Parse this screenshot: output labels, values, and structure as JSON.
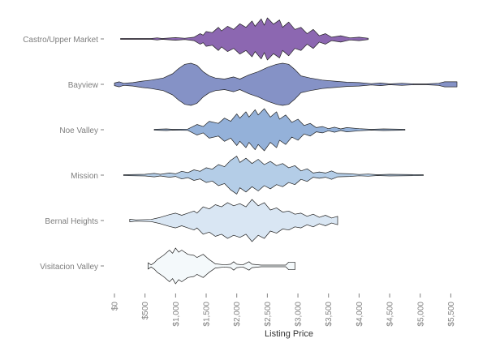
{
  "chart_data": {
    "type": "violin",
    "title": "",
    "xlabel": "Listing Price",
    "ylabel": "",
    "xlim": [
      0,
      5600
    ],
    "x_ticks": [
      0,
      500,
      1000,
      1500,
      2000,
      2500,
      3000,
      3500,
      4000,
      4500,
      5000,
      5500
    ],
    "x_tick_labels": [
      "$0",
      "$500",
      "$1,000",
      "$1,500",
      "$2,000",
      "$2,500",
      "$3,000",
      "$3,500",
      "$4,000",
      "$4,500",
      "$5,000",
      "$5,500"
    ],
    "categories": [
      "Castro/Upper Market",
      "Bayview",
      "Noe Valley",
      "Mission",
      "Bernal Heights",
      "Visitacion Valley"
    ],
    "colors": [
      "#8c67b1",
      "#8592c6",
      "#94b1d9",
      "#b4cde7",
      "#d9e6f3",
      "#f4f9fb"
    ],
    "series": [
      {
        "name": "Castro/Upper Market",
        "min": 100,
        "max": 4150,
        "density": [
          [
            100,
            0.02
          ],
          [
            600,
            0.02
          ],
          [
            700,
            0.05
          ],
          [
            780,
            0.02
          ],
          [
            1000,
            0.06
          ],
          [
            1150,
            0.03
          ],
          [
            1300,
            0.08
          ],
          [
            1400,
            0.25
          ],
          [
            1450,
            0.18
          ],
          [
            1500,
            0.35
          ],
          [
            1600,
            0.3
          ],
          [
            1700,
            0.55
          ],
          [
            1750,
            0.38
          ],
          [
            1850,
            0.6
          ],
          [
            1950,
            0.45
          ],
          [
            2050,
            0.72
          ],
          [
            2150,
            0.55
          ],
          [
            2250,
            0.85
          ],
          [
            2300,
            0.6
          ],
          [
            2400,
            0.95
          ],
          [
            2450,
            0.65
          ],
          [
            2500,
            1.0
          ],
          [
            2600,
            0.7
          ],
          [
            2700,
            0.9
          ],
          [
            2750,
            0.55
          ],
          [
            2850,
            0.8
          ],
          [
            2950,
            0.45
          ],
          [
            3050,
            0.55
          ],
          [
            3150,
            0.25
          ],
          [
            3250,
            0.45
          ],
          [
            3350,
            0.15
          ],
          [
            3450,
            0.25
          ],
          [
            3550,
            0.08
          ],
          [
            3700,
            0.15
          ],
          [
            3850,
            0.05
          ],
          [
            4000,
            0.08
          ],
          [
            4150,
            0.03
          ]
        ]
      },
      {
        "name": "Bayview",
        "min": 0,
        "max": 5600,
        "density": [
          [
            0,
            0.06
          ],
          [
            80,
            0.12
          ],
          [
            150,
            0.05
          ],
          [
            300,
            0.08
          ],
          [
            450,
            0.15
          ],
          [
            600,
            0.2
          ],
          [
            800,
            0.3
          ],
          [
            950,
            0.5
          ],
          [
            1050,
            0.75
          ],
          [
            1150,
            0.95
          ],
          [
            1250,
            1.0
          ],
          [
            1350,
            0.9
          ],
          [
            1450,
            0.6
          ],
          [
            1550,
            0.4
          ],
          [
            1650,
            0.3
          ],
          [
            1800,
            0.25
          ],
          [
            1950,
            0.35
          ],
          [
            2050,
            0.25
          ],
          [
            2200,
            0.45
          ],
          [
            2350,
            0.6
          ],
          [
            2500,
            0.8
          ],
          [
            2650,
            0.95
          ],
          [
            2750,
            1.0
          ],
          [
            2850,
            0.95
          ],
          [
            2950,
            0.7
          ],
          [
            3050,
            0.4
          ],
          [
            3200,
            0.3
          ],
          [
            3400,
            0.2
          ],
          [
            3600,
            0.15
          ],
          [
            3800,
            0.1
          ],
          [
            4000,
            0.08
          ],
          [
            4200,
            0.03
          ],
          [
            4350,
            0.06
          ],
          [
            4500,
            0.02
          ],
          [
            4700,
            0.05
          ],
          [
            4900,
            0.02
          ],
          [
            5100,
            0.02
          ],
          [
            5300,
            0.05
          ],
          [
            5400,
            0.12
          ],
          [
            5600,
            0.12
          ]
        ]
      },
      {
        "name": "Noe Valley",
        "min": 650,
        "max": 4750,
        "density": [
          [
            650,
            0.02
          ],
          [
            850,
            0.04
          ],
          [
            950,
            0.02
          ],
          [
            1200,
            0.03
          ],
          [
            1350,
            0.25
          ],
          [
            1450,
            0.15
          ],
          [
            1550,
            0.4
          ],
          [
            1700,
            0.3
          ],
          [
            1800,
            0.55
          ],
          [
            1900,
            0.4
          ],
          [
            2000,
            0.75
          ],
          [
            2050,
            0.55
          ],
          [
            2150,
            0.85
          ],
          [
            2200,
            0.6
          ],
          [
            2300,
            0.95
          ],
          [
            2350,
            0.7
          ],
          [
            2450,
            1.0
          ],
          [
            2550,
            0.6
          ],
          [
            2650,
            0.85
          ],
          [
            2700,
            0.5
          ],
          [
            2800,
            0.7
          ],
          [
            2900,
            0.35
          ],
          [
            3000,
            0.5
          ],
          [
            3100,
            0.2
          ],
          [
            3200,
            0.3
          ],
          [
            3300,
            0.1
          ],
          [
            3400,
            0.15
          ],
          [
            3500,
            0.05
          ],
          [
            3600,
            0.12
          ],
          [
            3700,
            0.04
          ],
          [
            3800,
            0.1
          ],
          [
            4000,
            0.05
          ],
          [
            4200,
            0.02
          ],
          [
            4400,
            0.04
          ],
          [
            4750,
            0.02
          ]
        ]
      },
      {
        "name": "Mission",
        "min": 150,
        "max": 5050,
        "density": [
          [
            150,
            0.02
          ],
          [
            500,
            0.04
          ],
          [
            650,
            0.08
          ],
          [
            750,
            0.04
          ],
          [
            900,
            0.1
          ],
          [
            1000,
            0.06
          ],
          [
            1100,
            0.18
          ],
          [
            1200,
            0.12
          ],
          [
            1300,
            0.25
          ],
          [
            1400,
            0.18
          ],
          [
            1500,
            0.35
          ],
          [
            1600,
            0.28
          ],
          [
            1700,
            0.5
          ],
          [
            1800,
            0.4
          ],
          [
            1900,
            0.7
          ],
          [
            2000,
            0.9
          ],
          [
            2050,
            0.6
          ],
          [
            2150,
            0.8
          ],
          [
            2250,
            0.55
          ],
          [
            2350,
            0.75
          ],
          [
            2450,
            0.5
          ],
          [
            2550,
            0.65
          ],
          [
            2650,
            0.45
          ],
          [
            2750,
            0.55
          ],
          [
            2850,
            0.35
          ],
          [
            2950,
            0.45
          ],
          [
            3050,
            0.2
          ],
          [
            3150,
            0.3
          ],
          [
            3250,
            0.1
          ],
          [
            3350,
            0.15
          ],
          [
            3450,
            0.1
          ],
          [
            3550,
            0.2
          ],
          [
            3650,
            0.08
          ],
          [
            3850,
            0.06
          ],
          [
            4000,
            0.03
          ],
          [
            4150,
            0.05
          ],
          [
            4300,
            0.02
          ],
          [
            4500,
            0.04
          ],
          [
            5050,
            0.02
          ]
        ]
      },
      {
        "name": "Bernal Heights",
        "min": 250,
        "max": 3650,
        "density": [
          [
            250,
            0.06
          ],
          [
            350,
            0.03
          ],
          [
            600,
            0.05
          ],
          [
            750,
            0.15
          ],
          [
            900,
            0.28
          ],
          [
            1000,
            0.35
          ],
          [
            1100,
            0.25
          ],
          [
            1200,
            0.35
          ],
          [
            1300,
            0.45
          ],
          [
            1350,
            0.35
          ],
          [
            1450,
            0.65
          ],
          [
            1550,
            0.55
          ],
          [
            1650,
            0.75
          ],
          [
            1750,
            0.65
          ],
          [
            1850,
            0.85
          ],
          [
            1950,
            0.7
          ],
          [
            2050,
            0.8
          ],
          [
            2150,
            0.65
          ],
          [
            2250,
            1.0
          ],
          [
            2350,
            0.7
          ],
          [
            2450,
            0.85
          ],
          [
            2550,
            0.5
          ],
          [
            2650,
            0.6
          ],
          [
            2750,
            0.4
          ],
          [
            2850,
            0.45
          ],
          [
            2950,
            0.3
          ],
          [
            3050,
            0.35
          ],
          [
            3150,
            0.2
          ],
          [
            3250,
            0.3
          ],
          [
            3350,
            0.15
          ],
          [
            3450,
            0.25
          ],
          [
            3550,
            0.12
          ],
          [
            3650,
            0.2
          ]
        ]
      },
      {
        "name": "Visitacion Valley",
        "min": 550,
        "max": 2950,
        "density": [
          [
            550,
            0.15
          ],
          [
            600,
            0.05
          ],
          [
            650,
            0.15
          ],
          [
            700,
            0.3
          ],
          [
            800,
            0.5
          ],
          [
            900,
            0.75
          ],
          [
            950,
            0.6
          ],
          [
            1000,
            0.85
          ],
          [
            1050,
            0.65
          ],
          [
            1100,
            0.75
          ],
          [
            1200,
            0.55
          ],
          [
            1300,
            0.5
          ],
          [
            1350,
            0.4
          ],
          [
            1450,
            0.55
          ],
          [
            1550,
            0.3
          ],
          [
            1650,
            0.1
          ],
          [
            1800,
            0.05
          ],
          [
            1900,
            0.08
          ],
          [
            1950,
            0.2
          ],
          [
            2000,
            0.08
          ],
          [
            2100,
            0.05
          ],
          [
            2200,
            0.2
          ],
          [
            2250,
            0.08
          ],
          [
            2400,
            0.04
          ],
          [
            2600,
            0.04
          ],
          [
            2800,
            0.04
          ],
          [
            2850,
            0.18
          ],
          [
            2950,
            0.18
          ]
        ]
      }
    ]
  }
}
